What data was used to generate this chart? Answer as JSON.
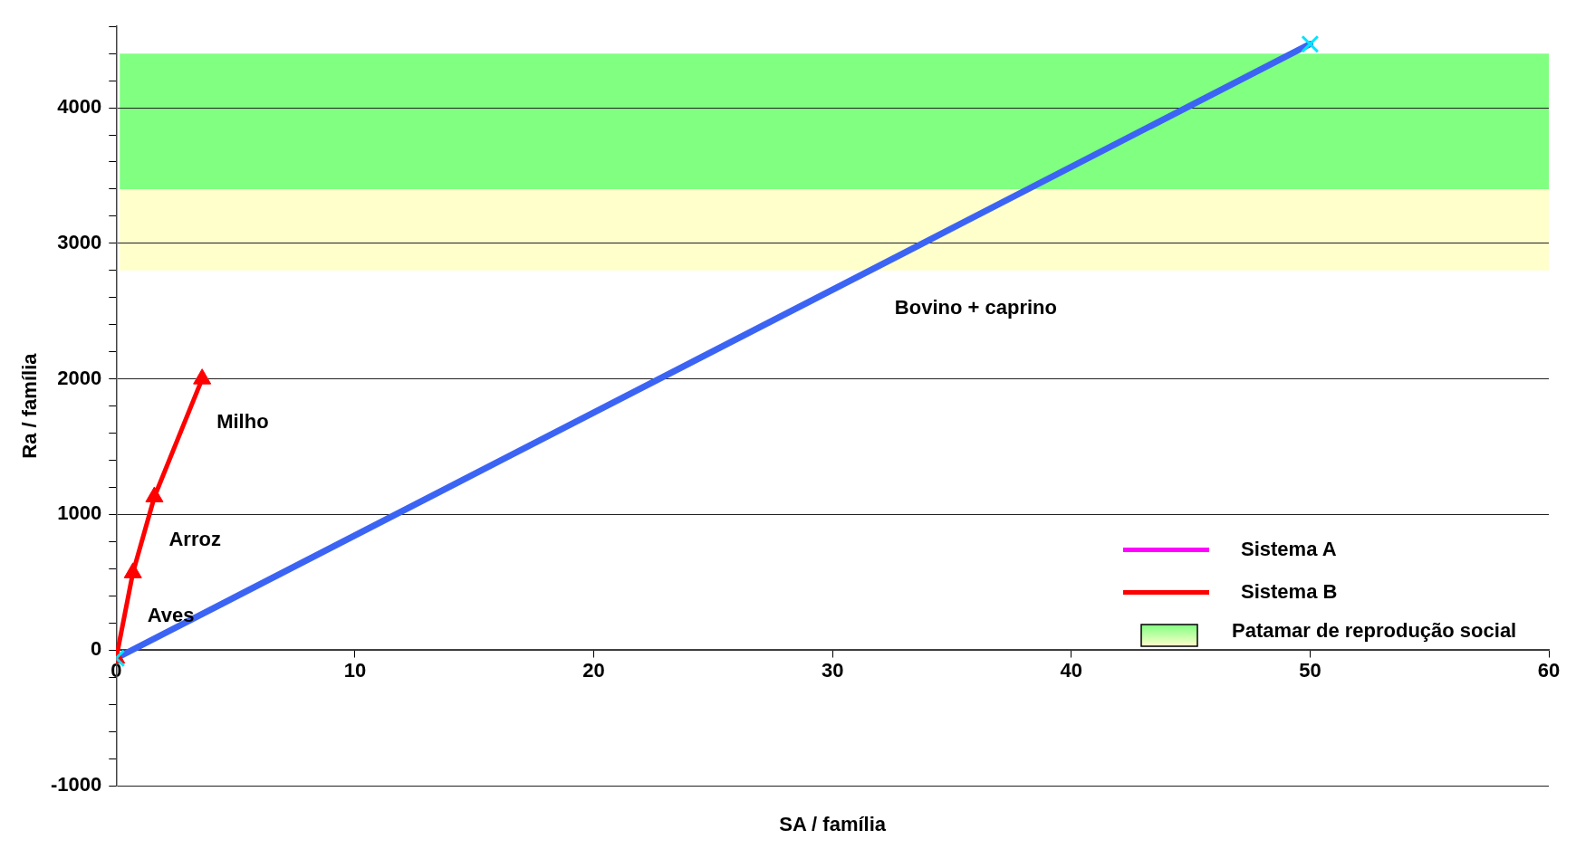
{
  "chart_data": {
    "type": "line",
    "xlabel": "SA / família",
    "ylabel": "Ra / família",
    "xlim": [
      0,
      60
    ],
    "xticks": [
      0,
      10,
      20,
      30,
      40,
      50,
      60
    ],
    "ylim": [
      -1000,
      4600
    ],
    "yticks": [
      -1000,
      {
        "value": -800,
        "label": null
      },
      {
        "value": -600,
        "label": null
      },
      {
        "value": -400,
        "label": null
      },
      {
        "value": -200,
        "label": null
      },
      0,
      {
        "value": 200,
        "label": null
      },
      {
        "value": 400,
        "label": null
      },
      {
        "value": 600,
        "label": null
      },
      {
        "value": 800,
        "label": null
      },
      1000,
      {
        "value": 1200,
        "label": null
      },
      {
        "value": 1400,
        "label": null
      },
      {
        "value": 1600,
        "label": null
      },
      {
        "value": 1800,
        "label": null
      },
      2000,
      {
        "value": 2200,
        "label": null
      },
      {
        "value": 2400,
        "label": null
      },
      {
        "value": 2600,
        "label": null
      },
      {
        "value": 2800,
        "label": null
      },
      3000,
      {
        "value": 3200,
        "label": null
      },
      {
        "value": 3400,
        "label": null
      },
      {
        "value": 3600,
        "label": null
      },
      {
        "value": 3800,
        "label": null
      },
      4000,
      {
        "value": 4200,
        "label": null
      },
      {
        "value": 4400,
        "label": null
      },
      {
        "value": 4600,
        "label": null
      }
    ],
    "grid": "y",
    "legend": "bottom right",
    "series": [
      {
        "name": "Sistema A",
        "color": "#ff00ff"
      },
      {
        "color": "#3c64f4",
        "x": [
          0,
          50
        ],
        "values": [
          -60,
          4470
        ],
        "marker": "none"
      },
      {
        "name": "Sistema B",
        "color": "#ff0000",
        "x": [
          0,
          0.7,
          1.6,
          3.6
        ],
        "values": [
          -60,
          570,
          1130,
          2000
        ],
        "marker": "triangle"
      },
      {
        "type": "scatter",
        "color": "#00e5ff",
        "x": [
          0,
          50
        ],
        "values": [
          -60,
          4470
        ],
        "marker": "cross"
      }
    ],
    "bands": [
      {
        "axis": "y",
        "from": 3400,
        "to": 4400,
        "color": "#80ff80",
        "label": "Patamar de reprodução social"
      },
      {
        "axis": "y",
        "from": 2800,
        "to": 3400,
        "color": "#ffffcc"
      }
    ],
    "annotations": [
      {
        "text": "Aves",
        "x": 0.7,
        "y": 570
      },
      {
        "text": "Arroz",
        "x": 1.6,
        "y": 1130
      },
      {
        "text": "Milho",
        "x": 3.6,
        "y": 2000
      },
      {
        "text": "Bovino + caprino",
        "x": 32,
        "y": 2840
      }
    ]
  }
}
